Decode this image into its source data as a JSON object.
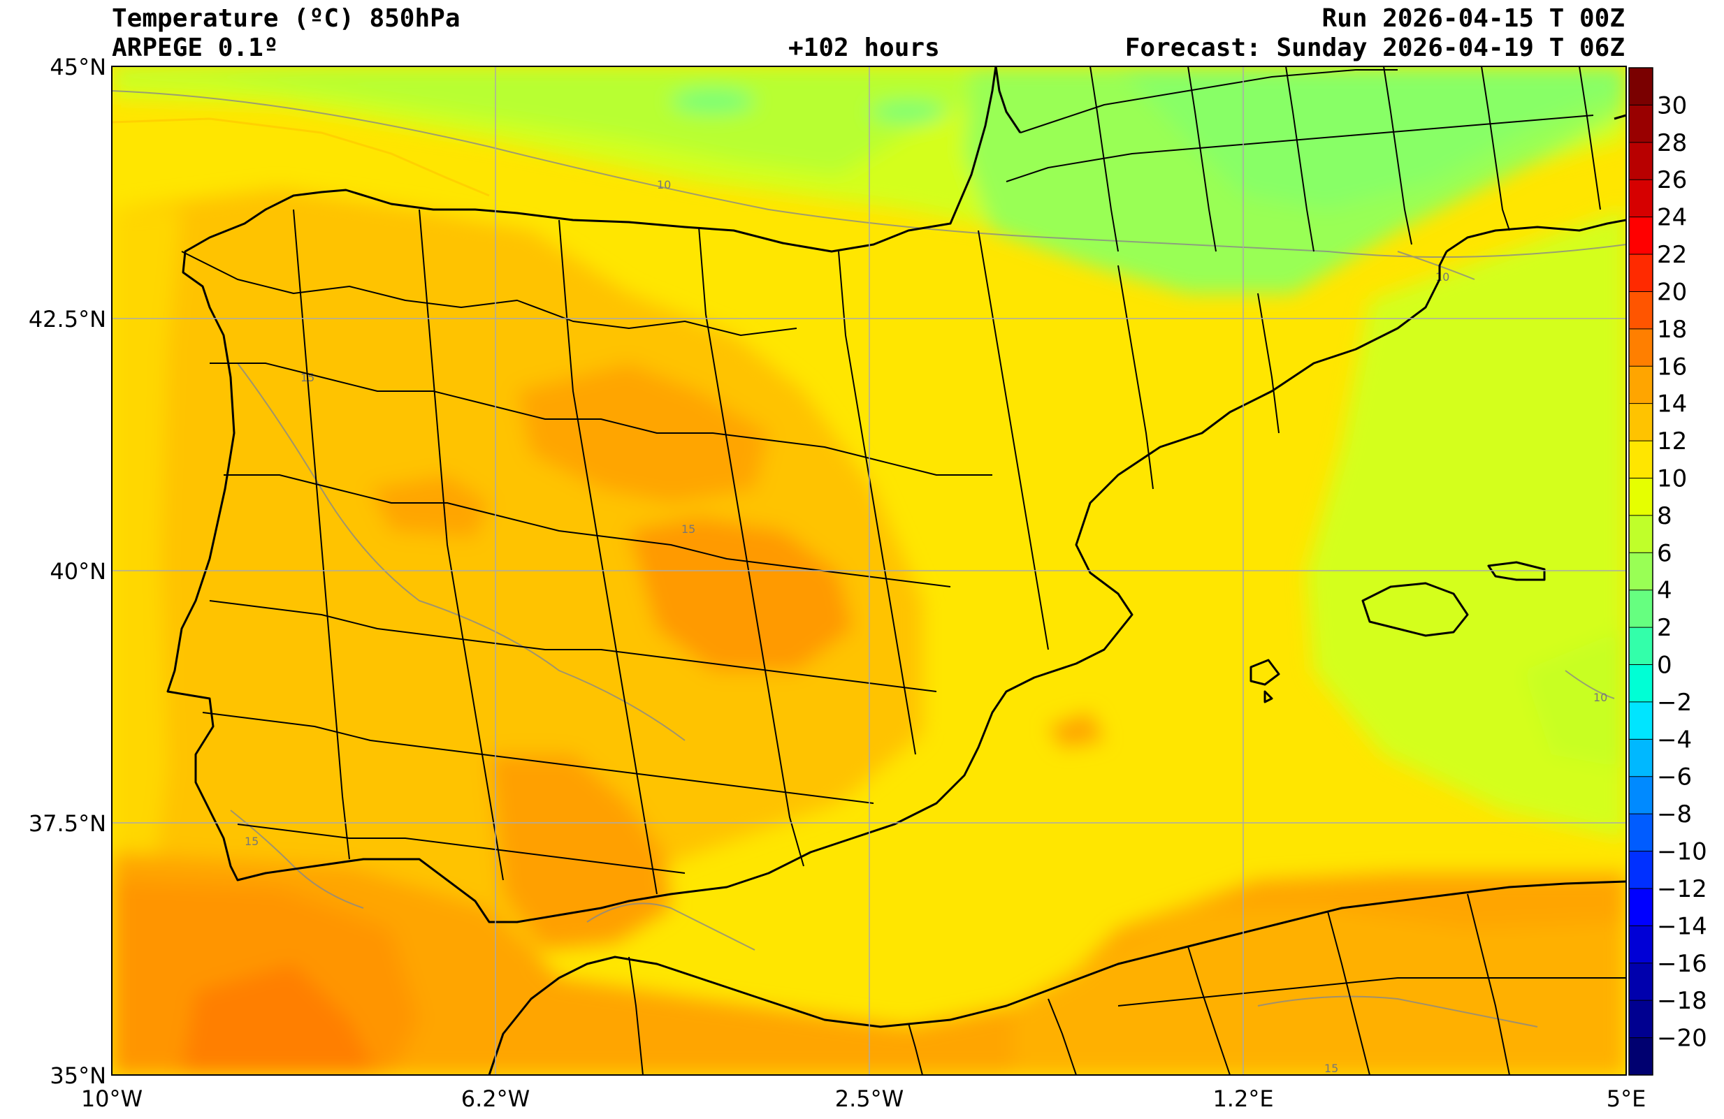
{
  "header": {
    "title": "Temperature (ºC) 850hPa",
    "model": "ARPEGE 0.1º",
    "lead_time": "+102 hours",
    "run": "Run 2026-04-15 T 00Z",
    "forecast": "Forecast: Sunday 2026-04-19 T 06Z"
  },
  "axes": {
    "lat_labels": [
      "45°N",
      "42.5°N",
      "40°N",
      "37.5°N",
      "35°N"
    ],
    "lon_labels": [
      "10°W",
      "6.2°W",
      "2.5°W",
      "1.2°E",
      "5°E"
    ],
    "lat_range": [
      35,
      45
    ],
    "lon_range": [
      -10,
      5
    ],
    "grid": true
  },
  "colorbar": {
    "labels": [
      "30",
      "28",
      "26",
      "24",
      "22",
      "20",
      "18",
      "16",
      "14",
      "12",
      "10",
      "8",
      "6",
      "4",
      "2",
      "0",
      "−2",
      "−4",
      "−6",
      "−8",
      "−10",
      "−12",
      "−14",
      "−16",
      "−18",
      "−20"
    ],
    "colors": [
      "#7a0000",
      "#990000",
      "#b80000",
      "#d60000",
      "#ff0000",
      "#ff2a00",
      "#ff5500",
      "#ff7f00",
      "#ffa500",
      "#ffc300",
      "#ffe600",
      "#e6ff00",
      "#c0ff2a",
      "#99ff55",
      "#66ff80",
      "#33ffaa",
      "#00ffd5",
      "#00e5ff",
      "#00b8ff",
      "#008aff",
      "#005cff",
      "#0030ff",
      "#0000ff",
      "#0000d6",
      "#0000ad",
      "#000090",
      "#000070"
    ]
  },
  "contour_labels": [
    "10",
    "10",
    "10",
    "15",
    "15",
    "15",
    "15"
  ],
  "colors": {
    "warm_orange": "#ffa500",
    "deep_orange": "#ff7f00",
    "light_orange": "#ffc300",
    "yellow": "#ffe600",
    "lime": "#d4ff1a",
    "green": "#99ff55",
    "mint": "#66ff80"
  }
}
